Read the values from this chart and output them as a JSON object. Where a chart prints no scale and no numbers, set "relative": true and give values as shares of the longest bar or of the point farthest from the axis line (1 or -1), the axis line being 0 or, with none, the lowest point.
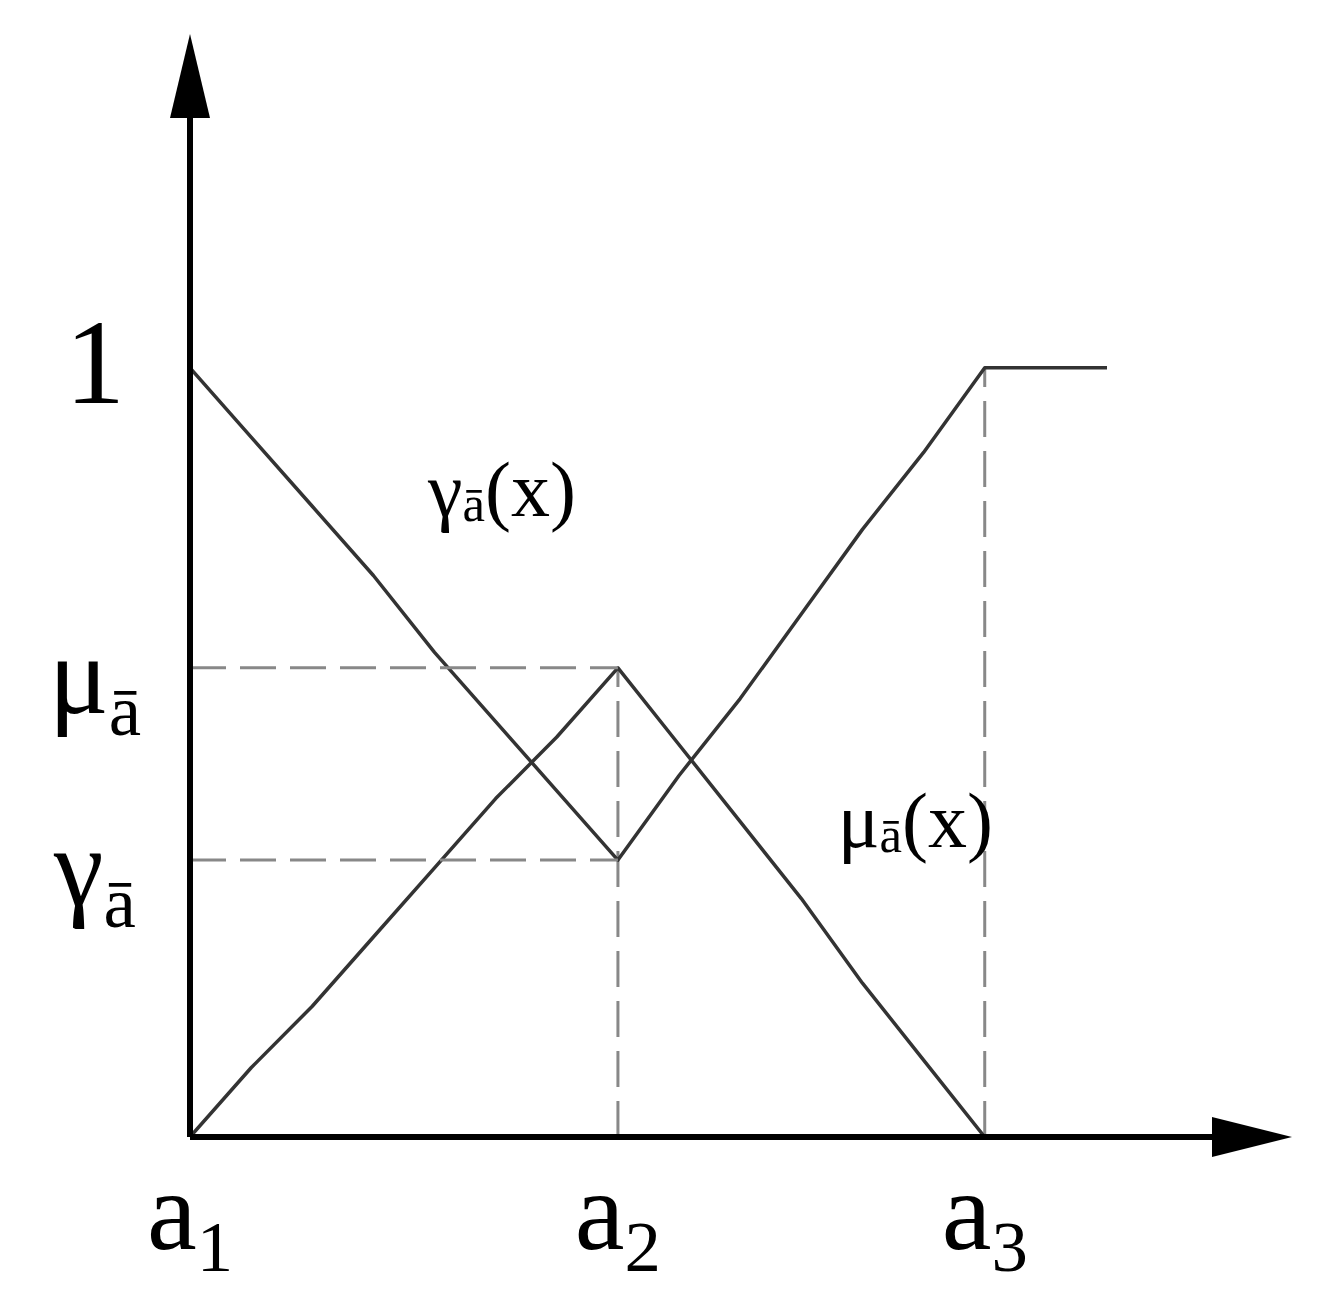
{
  "chart_data": {
    "type": "line",
    "relative": true,
    "categories": [
      "a$_{1}$",
      null,
      null,
      null,
      null,
      null,
      null,
      "a$_{2}$",
      null,
      null,
      null,
      null,
      null,
      "a$_{3}$",
      null,
      null
    ],
    "series": [
      {
        "color": "#333333",
        "values": [
          1,
          0.91,
          0.82,
          0.73,
          0.63,
          0.54,
          0.45,
          0.36,
          0.47,
          0.57,
          0.68,
          0.79,
          0.89,
          1,
          1,
          1
        ]
      },
      {
        "color": "#333333",
        "values": [
          0,
          0.09,
          0.17,
          0.26,
          0.35,
          0.44,
          0.52,
          0.61,
          0.51,
          0.41,
          0.31,
          0.2,
          0.1,
          0,
          null,
          null
        ]
      },
      {
        "name": "μ$_{ā}$",
        "color": "#888888",
        "line_style": "dashed",
        "values": [
          0.61,
          0.61,
          0.61,
          0.61,
          0.61,
          0.61,
          0.61,
          0.61,
          null,
          null,
          null,
          null,
          null,
          null,
          null,
          null
        ]
      },
      {
        "name": "γ$_{ā}$",
        "color": "#888888",
        "line_style": "dashed",
        "values": [
          0.36,
          0.36,
          0.36,
          0.36,
          0.36,
          0.36,
          0.36,
          0.36,
          null,
          null,
          null,
          null,
          null,
          null,
          null,
          null
        ]
      }
    ],
    "ref_lines": [
      {
        "axis": "x",
        "value": "a$_{2}$",
        "color": "#888888",
        "line_style": "dashed"
      },
      {
        "axis": "x",
        "value": "a$_{3}$",
        "color": "#888888",
        "line_style": "dashed"
      }
    ],
    "annotations": [
      "γ$_{ā}$(x)",
      "μ$_{ā}$(x)",
      "1"
    ]
  }
}
